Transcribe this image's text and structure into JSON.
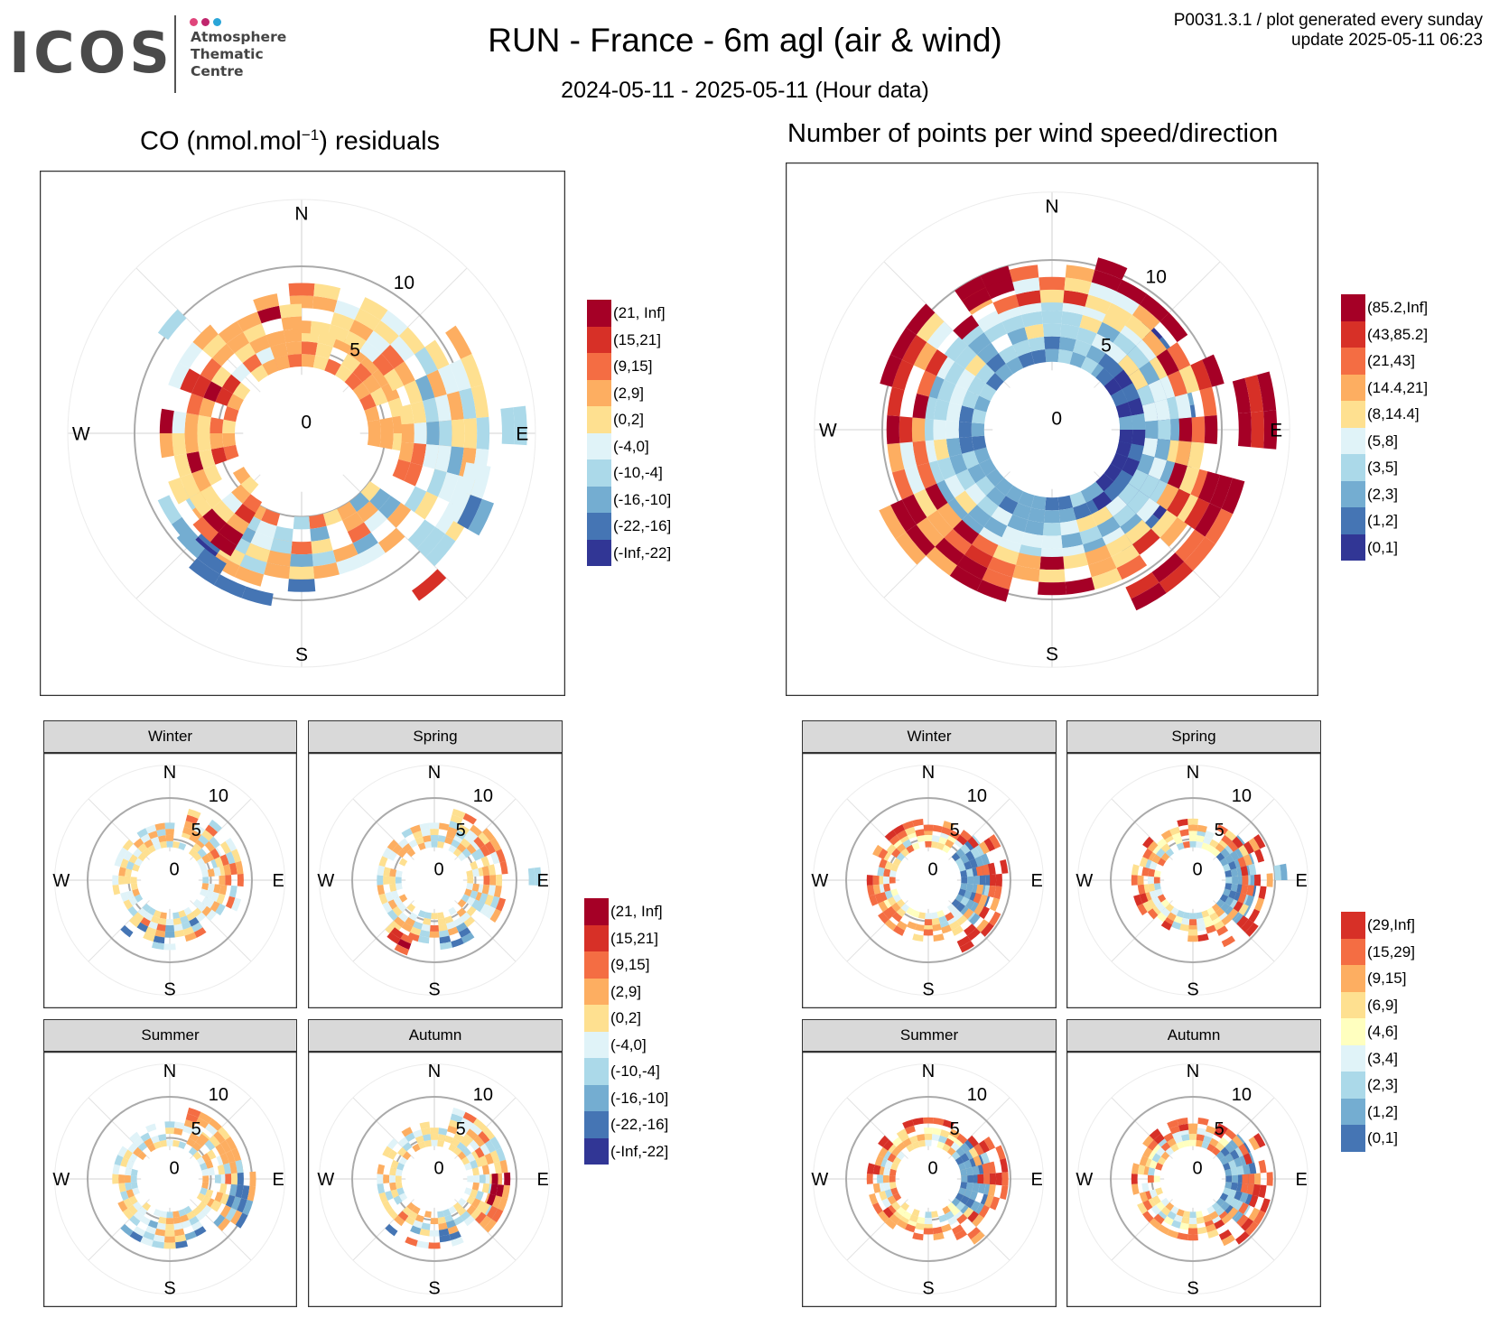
{
  "header": {
    "logo_wordmark": "ICOS",
    "logo_lines": [
      "Atmosphere",
      "Thematic",
      "Centre"
    ],
    "logo_dot_colors": [
      "#e0457b",
      "#c0266d",
      "#2aa5d8"
    ],
    "title": "RUN - France - 6m agl (air & wind)",
    "period": "2024-05-11 - 2025-05-11 (Hour data)",
    "plot_id": "P0031.3.1 / plot generated every sunday",
    "update": "update  2025-05-11 06:23"
  },
  "panels": {
    "co_title_main": "CO (nmol.mol",
    "co_title_sup": "−1",
    "co_title_end": ") residuals",
    "count_title": "Number of points per wind speed/direction",
    "compass": [
      "N",
      "E",
      "S",
      "W"
    ],
    "radial_ticks": [
      "0",
      "5",
      "10"
    ],
    "seasons": [
      "Winter",
      "Spring",
      "Summer",
      "Autumn"
    ]
  },
  "legends": {
    "co": {
      "labels": [
        "(21, Inf]",
        "(15,21]",
        "(9,15]",
        "(2,9]",
        "(0,2]",
        "(-4,0]",
        "(-10,-4]",
        "(-16,-10]",
        "(-22,-16]",
        "(-Inf,-22]"
      ],
      "colors": [
        "#a50026",
        "#d73027",
        "#f46d43",
        "#fdae61",
        "#fee090",
        "#e0f3f8",
        "#abd9e9",
        "#74add1",
        "#4575b4",
        "#313695"
      ]
    },
    "count_annual": {
      "labels": [
        "(85.2,Inf]",
        "(43,85.2]",
        "(21,43]",
        "(14.4,21]",
        "(8,14.4]",
        "(5,8]",
        "(3,5]",
        "(2,3]",
        "(1,2]",
        "(0,1]"
      ],
      "colors": [
        "#a50026",
        "#d73027",
        "#f46d43",
        "#fdae61",
        "#fee090",
        "#e0f3f8",
        "#abd9e9",
        "#74add1",
        "#4575b4",
        "#313695"
      ]
    },
    "count_seasonal": {
      "labels": [
        "(29,Inf]",
        "(15,29]",
        "(9,15]",
        "(6,9]",
        "(4,6]",
        "(3,4]",
        "(2,3]",
        "(1,2]",
        "(0,1]"
      ],
      "colors": [
        "#d73027",
        "#f46d43",
        "#fdae61",
        "#fee090",
        "#ffffbf",
        "#e0f3f8",
        "#abd9e9",
        "#74add1",
        "#4575b4"
      ]
    }
  },
  "chart_data": [
    {
      "type": "heatmap",
      "title": "CO (nmol.mol−1) residuals",
      "coordinate_system": "polar",
      "theta": "wind direction",
      "r": "wind speed",
      "r_ticks": [
        0,
        5,
        10
      ],
      "r_range": [
        0,
        14
      ]
    },
    {
      "type": "heatmap",
      "title": "Number of points per wind speed/direction",
      "coordinate_system": "polar",
      "theta": "wind direction",
      "r": "wind speed",
      "r_ticks": [
        0,
        5,
        10
      ],
      "r_range": [
        0,
        14
      ]
    },
    {
      "type": "heatmap",
      "facet": "Winter",
      "variable": "CO residuals",
      "coordinate_system": "polar"
    },
    {
      "type": "heatmap",
      "facet": "Spring",
      "variable": "CO residuals",
      "coordinate_system": "polar"
    },
    {
      "type": "heatmap",
      "facet": "Summer",
      "variable": "CO residuals",
      "coordinate_system": "polar"
    },
    {
      "type": "heatmap",
      "facet": "Autumn",
      "variable": "CO residuals",
      "coordinate_system": "polar"
    },
    {
      "type": "heatmap",
      "facet": "Winter",
      "variable": "Number of points",
      "coordinate_system": "polar"
    },
    {
      "type": "heatmap",
      "facet": "Spring",
      "variable": "Number of points",
      "coordinate_system": "polar"
    },
    {
      "type": "heatmap",
      "facet": "Summer",
      "variable": "Number of points",
      "coordinate_system": "polar"
    },
    {
      "type": "heatmap",
      "facet": "Autumn",
      "variable": "Number of points",
      "coordinate_system": "polar"
    }
  ]
}
